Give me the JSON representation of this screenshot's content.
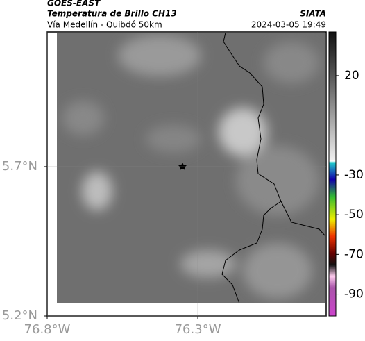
{
  "chart_data": {
    "type": "map",
    "title": "GOES-EAST",
    "subtitle": "Temperatura de Brillo CH13",
    "source": "SIATA",
    "region": "Vía Medellín - Quibdó 50km",
    "datetime": "2024-03-05 19:49",
    "xlim": [
      -76.8,
      -75.874
    ],
    "ylim": [
      5.2,
      6.151
    ],
    "xticks": [
      {
        "value": -76.8,
        "label": "76.8°W"
      },
      {
        "value": -76.3,
        "label": "76.3°W"
      }
    ],
    "yticks": [
      {
        "value": 5.2,
        "label": "5.2°N"
      },
      {
        "value": 5.7,
        "label": "5.7°N"
      }
    ],
    "grid": true,
    "colorbar_lim": [
      42,
      -101
    ],
    "colorbar_ticks": [
      20,
      -30,
      -50,
      -70,
      -90
    ]
  }
}
